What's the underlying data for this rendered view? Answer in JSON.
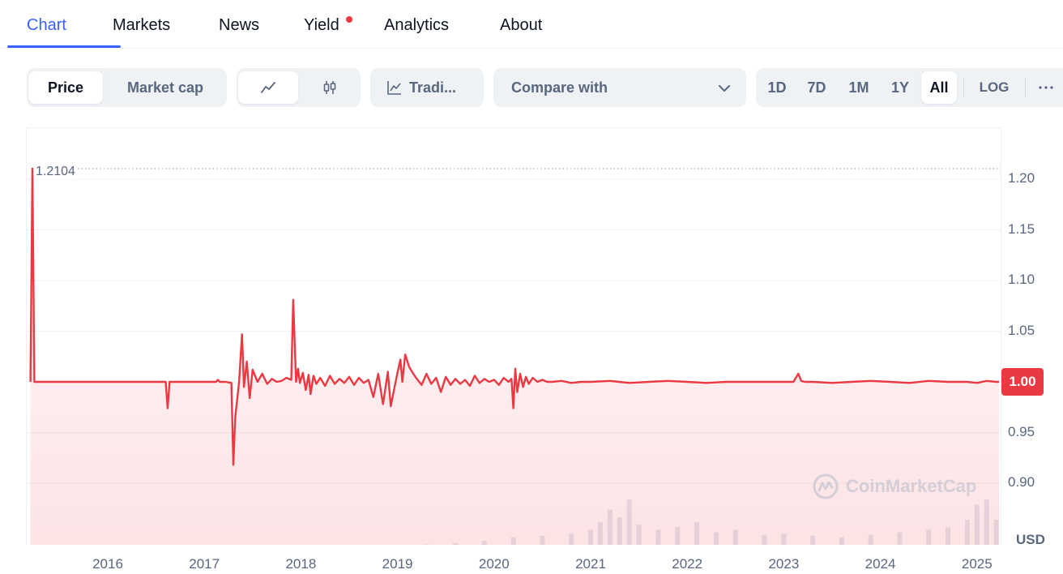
{
  "tabs": [
    {
      "label": "Chart",
      "active": true
    },
    {
      "label": "Markets",
      "active": false
    },
    {
      "label": "News",
      "active": false
    },
    {
      "label": "Yield",
      "active": false,
      "has_dot": true
    },
    {
      "label": "Analytics",
      "active": false
    },
    {
      "label": "About",
      "active": false
    }
  ],
  "toolbar": {
    "metric_options": [
      {
        "label": "Price",
        "selected": true
      },
      {
        "label": "Market cap",
        "selected": false
      }
    ],
    "chart_type": {
      "selected": "line-chart-icon",
      "options": [
        "line-chart-icon",
        "candlestick-icon"
      ]
    },
    "tradingview_label": "Tradi...",
    "compare_label": "Compare with",
    "ranges": [
      {
        "label": "1D",
        "selected": false
      },
      {
        "label": "7D",
        "selected": false
      },
      {
        "label": "1M",
        "selected": false
      },
      {
        "label": "1Y",
        "selected": false
      },
      {
        "label": "All",
        "selected": true
      }
    ],
    "log_label": "LOG",
    "more_icon": "ellipsis-icon"
  },
  "chart": {
    "max_label": "1.2104",
    "current_price_label": "1.00",
    "currency_label": "USD",
    "watermark": "CoinMarketCap",
    "colors": {
      "line": "#ea3943",
      "accent": "#3861fb",
      "volume": "#cfd6e4"
    }
  },
  "chart_data": {
    "type": "line",
    "title": "",
    "xlabel": "",
    "ylabel": "",
    "x_ticks": [
      "2016",
      "2017",
      "2018",
      "2019",
      "2020",
      "2021",
      "2022",
      "2023",
      "2024",
      "2025"
    ],
    "y_ticks": [
      "0.90",
      "0.95",
      "1.00",
      "1.05",
      "1.10",
      "1.15",
      "1.20"
    ],
    "ylim": [
      0.87,
      1.22
    ],
    "xlim": [
      2015.2,
      2025.3
    ],
    "max_value": 1.2104,
    "last_value": 1.0,
    "grid": true,
    "series": [
      {
        "type": "line",
        "x": [
          2015.2,
          2015.22,
          2015.24,
          2016.6,
          2016.62,
          2016.64,
          2017.12,
          2017.14,
          2017.16,
          2017.2,
          2017.22,
          2017.28,
          2017.3,
          2017.32,
          2017.36,
          2017.39,
          2017.41,
          2017.44,
          2017.47,
          2017.5,
          2017.55,
          2017.6,
          2017.65,
          2017.7,
          2017.75,
          2017.8,
          2017.85,
          2017.9,
          2017.92,
          2017.95,
          2017.97,
          2017.99,
          2018.02,
          2018.05,
          2018.08,
          2018.1,
          2018.13,
          2018.16,
          2018.2,
          2018.25,
          2018.3,
          2018.35,
          2018.4,
          2018.45,
          2018.5,
          2018.55,
          2018.6,
          2018.65,
          2018.7,
          2018.75,
          2018.8,
          2018.85,
          2018.9,
          2018.93,
          2018.97,
          2019.0,
          2019.03,
          2019.05,
          2019.08,
          2019.12,
          2019.15,
          2019.2,
          2019.25,
          2019.3,
          2019.35,
          2019.4,
          2019.45,
          2019.5,
          2019.55,
          2019.6,
          2019.65,
          2019.7,
          2019.75,
          2019.8,
          2019.85,
          2019.9,
          2019.95,
          2020.0,
          2020.05,
          2020.1,
          2020.15,
          2020.18,
          2020.2,
          2020.22,
          2020.24,
          2020.27,
          2020.3,
          2020.33,
          2020.36,
          2020.4,
          2020.45,
          2020.5,
          2020.55,
          2020.6,
          2020.7,
          2020.8,
          2020.9,
          2021.0,
          2021.2,
          2021.4,
          2021.6,
          2021.8,
          2022.0,
          2022.2,
          2022.4,
          2022.6,
          2022.8,
          2023.0,
          2023.1,
          2023.15,
          2023.18,
          2023.22,
          2023.3,
          2023.5,
          2023.7,
          2023.9,
          2024.1,
          2024.3,
          2024.5,
          2024.7,
          2024.9,
          2025.0,
          2025.1,
          2025.2,
          2025.3
        ],
        "y": [
          1.0,
          1.2104,
          1.0,
          1.0,
          0.974,
          1.0,
          1.0,
          1.002,
          1.0,
          1.0,
          1.0,
          0.999,
          0.918,
          0.965,
          1.0,
          1.047,
          0.995,
          1.02,
          0.984,
          1.012,
          1.0,
          1.008,
          0.998,
          1.003,
          1.0,
          1.001,
          1.004,
          1.002,
          1.081,
          1.0,
          1.013,
          0.999,
          1.009,
          0.992,
          1.007,
          0.988,
          1.006,
          0.998,
          1.004,
          0.996,
          1.006,
          0.998,
          1.003,
          0.999,
          1.005,
          0.997,
          1.004,
          0.999,
          1.002,
          0.985,
          1.008,
          0.978,
          1.01,
          0.976,
          0.995,
          1.009,
          1.022,
          1.0,
          1.027,
          1.015,
          1.01,
          1.003,
          0.997,
          1.008,
          0.998,
          1.004,
          0.99,
          1.005,
          0.997,
          1.003,
          0.998,
          1.002,
          0.996,
          1.006,
          0.999,
          1.003,
          1.0,
          1.002,
          0.997,
          1.004,
          1.0,
          1.003,
          0.974,
          1.013,
          0.99,
          1.008,
          0.995,
          1.005,
          0.998,
          1.004,
          1.0,
          1.002,
          1.0,
          1.0,
          1.001,
          0.999,
          1.0,
          1.0,
          1.001,
          0.999,
          1.0,
          1.001,
          1.0,
          0.999,
          1.0,
          1.0,
          1.0,
          1.0,
          1.0,
          1.008,
          1.001,
          1.0,
          1.0,
          0.999,
          1.0,
          1.001,
          1.0,
          0.999,
          1.001,
          1.0,
          1.0,
          0.999,
          1.001,
          1.0,
          1.0
        ]
      },
      {
        "type": "volume",
        "x": [
          2019.3,
          2019.6,
          2019.9,
          2020.2,
          2020.5,
          2020.8,
          2021.0,
          2021.1,
          2021.2,
          2021.3,
          2021.4,
          2021.5,
          2021.7,
          2021.9,
          2022.1,
          2022.3,
          2022.5,
          2022.8,
          2023.0,
          2023.3,
          2023.6,
          2023.9,
          2024.2,
          2024.5,
          2024.7,
          2024.9,
          2025.0,
          2025.1,
          2025.2
        ],
        "y": [
          0.01,
          0.03,
          0.08,
          0.15,
          0.18,
          0.22,
          0.3,
          0.45,
          0.7,
          0.55,
          0.9,
          0.4,
          0.3,
          0.35,
          0.45,
          0.25,
          0.3,
          0.2,
          0.22,
          0.18,
          0.15,
          0.2,
          0.25,
          0.3,
          0.35,
          0.5,
          0.8,
          0.9,
          0.5
        ]
      }
    ]
  }
}
